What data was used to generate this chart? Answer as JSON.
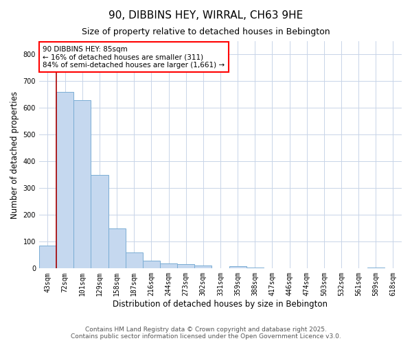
{
  "title": "90, DIBBINS HEY, WIRRAL, CH63 9HE",
  "subtitle": "Size of property relative to detached houses in Bebington",
  "xlabel": "Distribution of detached houses by size in Bebington",
  "ylabel": "Number of detached properties",
  "categories": [
    "43sqm",
    "72sqm",
    "101sqm",
    "129sqm",
    "158sqm",
    "187sqm",
    "216sqm",
    "244sqm",
    "273sqm",
    "302sqm",
    "331sqm",
    "359sqm",
    "388sqm",
    "417sqm",
    "446sqm",
    "474sqm",
    "503sqm",
    "532sqm",
    "561sqm",
    "589sqm",
    "618sqm"
  ],
  "values": [
    85,
    660,
    630,
    350,
    150,
    60,
    30,
    20,
    15,
    10,
    0,
    8,
    3,
    0,
    0,
    0,
    0,
    0,
    0,
    3,
    0
  ],
  "bar_color": "#c5d8ef",
  "bar_edge_color": "#7aadd4",
  "vline_x_index": 1,
  "vline_color": "#aa0000",
  "annotation_text": "90 DIBBINS HEY: 85sqm\n← 16% of detached houses are smaller (311)\n84% of semi-detached houses are larger (1,661) →",
  "annotation_box_color": "white",
  "annotation_box_edge": "red",
  "ylim": [
    0,
    850
  ],
  "yticks": [
    0,
    100,
    200,
    300,
    400,
    500,
    600,
    700,
    800
  ],
  "background_color": "#ffffff",
  "plot_bg_color": "#ffffff",
  "grid_color": "#c8d4e8",
  "footer": "Contains HM Land Registry data © Crown copyright and database right 2025.\nContains public sector information licensed under the Open Government Licence v3.0.",
  "title_fontsize": 11,
  "subtitle_fontsize": 9,
  "xlabel_fontsize": 8.5,
  "ylabel_fontsize": 8.5,
  "footer_fontsize": 6.5,
  "annotation_fontsize": 7.5,
  "tick_fontsize": 7
}
